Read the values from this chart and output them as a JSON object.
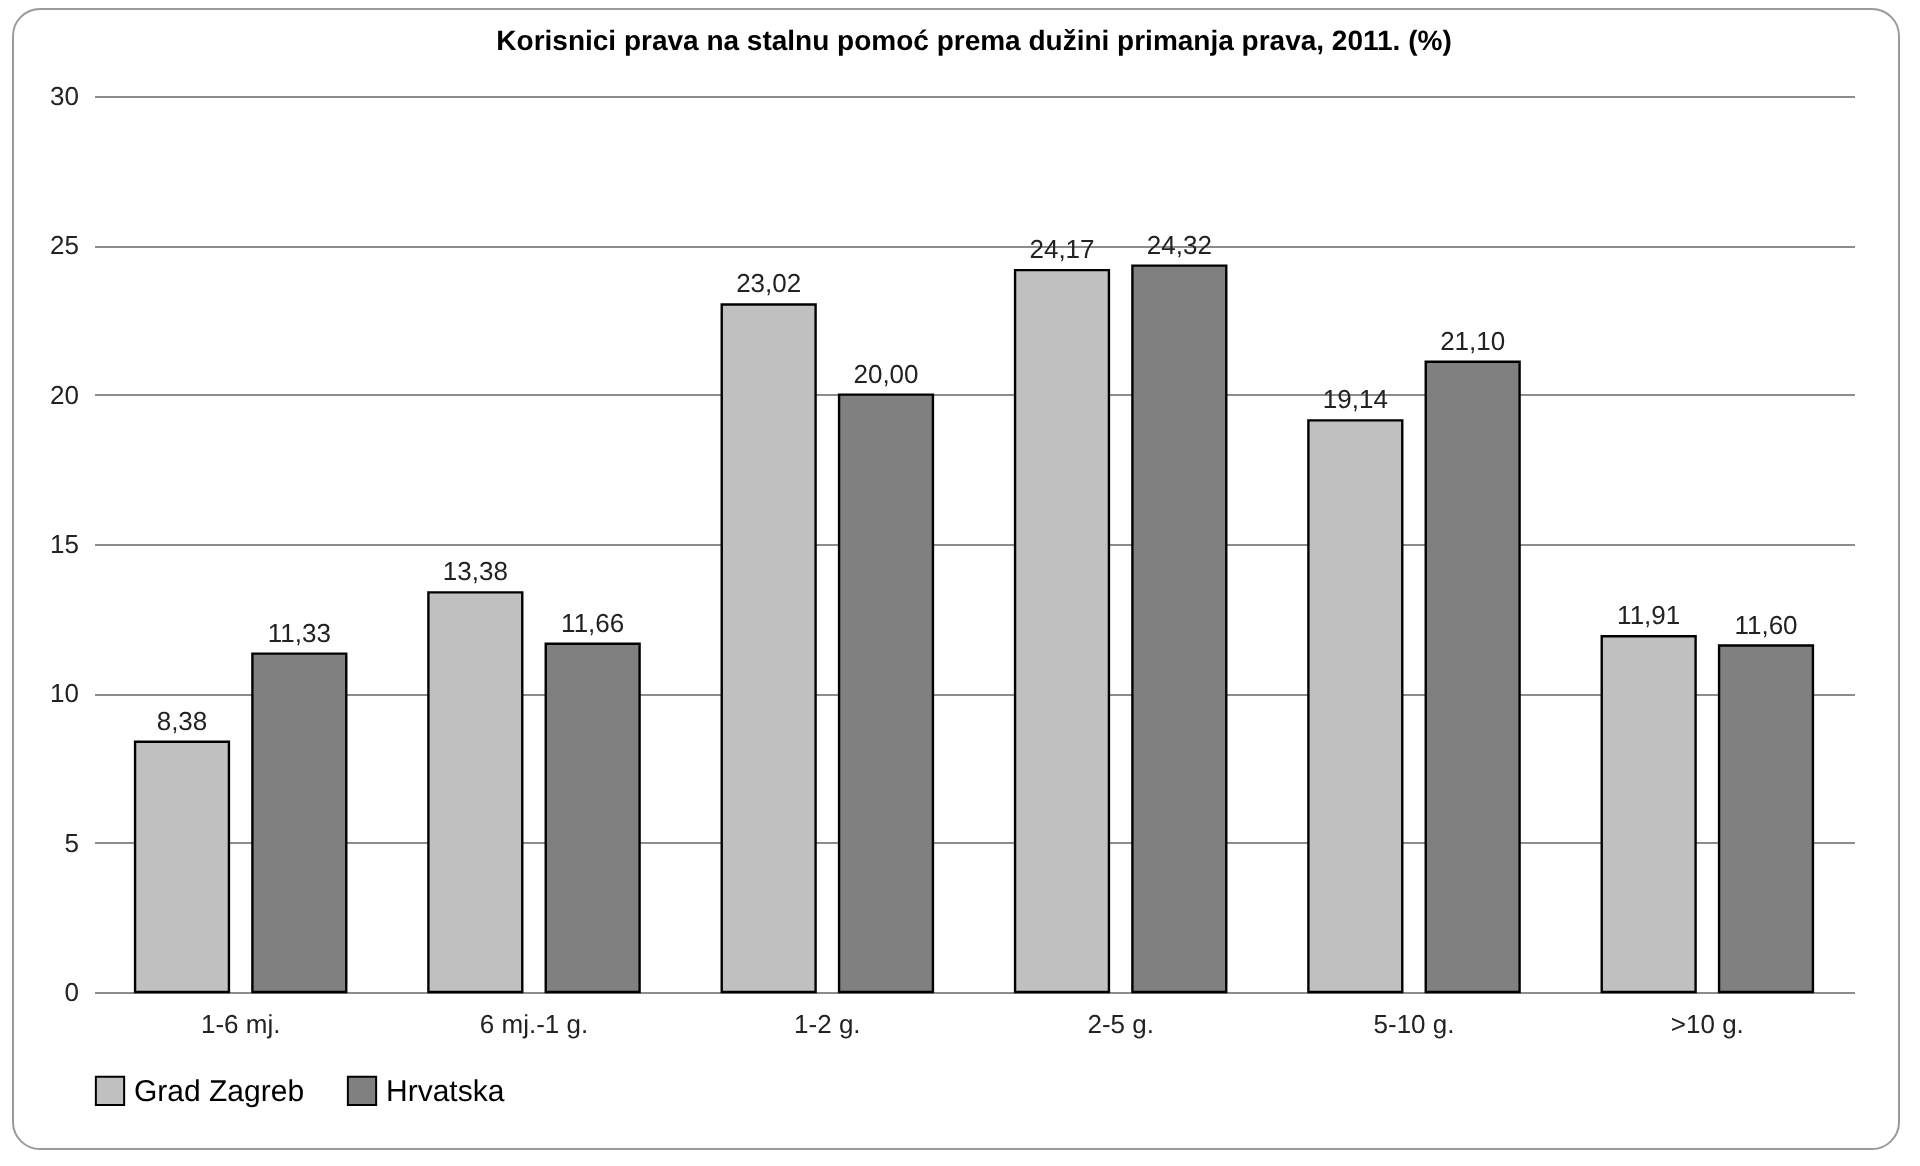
{
  "chart_data": {
    "type": "bar",
    "title": "Korisnici prava na stalnu pomoć prema dužini primanja prava, 2011. (%)",
    "categories": [
      "1-6 mj.",
      "6 mj.-1 g.",
      "1-2 g.",
      "2-5 g.",
      "5-10 g.",
      ">10 g."
    ],
    "series": [
      {
        "name": "Grad Zagreb",
        "color": "#c0c0c0",
        "values": [
          8.38,
          13.38,
          23.02,
          24.17,
          19.14,
          11.91
        ],
        "value_labels": [
          "8,38",
          "13,38",
          "23,02",
          "24,17",
          "19,14",
          "11,91"
        ]
      },
      {
        "name": "Hrvatska",
        "color": "#808080",
        "values": [
          11.33,
          11.66,
          20.0,
          24.32,
          21.1,
          11.6
        ],
        "value_labels": [
          "11,33",
          "11,66",
          "20,00",
          "24,32",
          "21,10",
          "11,60"
        ]
      }
    ],
    "ylim": [
      0,
      30
    ],
    "yticks": [
      0,
      5,
      10,
      15,
      20,
      25,
      30
    ],
    "grid": "y",
    "legend": "bottom"
  }
}
